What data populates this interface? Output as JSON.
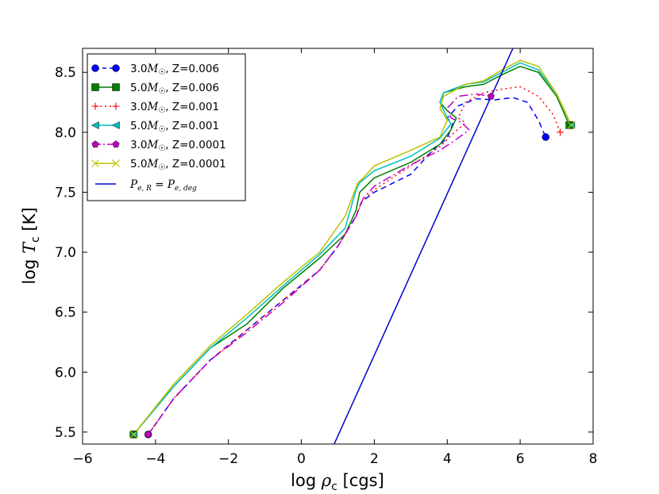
{
  "chart_data": {
    "type": "line",
    "title": "",
    "xlabel_prefix": "log ",
    "xlabel_symbol": "ρ",
    "xlabel_sub": "c",
    "xlabel_suffix": " [cgs]",
    "ylabel_prefix": "log ",
    "ylabel_symbol": "T",
    "ylabel_sub": "c",
    "ylabel_suffix": " [K]",
    "xlim": [
      -6,
      8
    ],
    "ylim": [
      5.4,
      8.7
    ],
    "xticks": [
      -6,
      -4,
      -2,
      0,
      2,
      4,
      6,
      8
    ],
    "xtick_labels": [
      "−6",
      "−4",
      "−2",
      "0",
      "2",
      "4",
      "6",
      "8"
    ],
    "yticks": [
      5.5,
      6.0,
      6.5,
      7.0,
      7.5,
      8.0,
      8.5
    ],
    "ytick_labels": [
      "5.5",
      "6.0",
      "6.5",
      "7.0",
      "7.5",
      "8.0",
      "8.5"
    ],
    "legend_position": "top-left",
    "series": [
      {
        "name": "3.0M☉, Z=0.006",
        "mass": "3.0",
        "z_text": ", Z=0.006",
        "color": "#0000ff",
        "dash": "7,5",
        "marker": "circle",
        "x": [
          -4.2,
          -3.5,
          -2.5,
          -1.5,
          -0.5,
          0.5,
          1.0,
          1.5,
          1.65,
          2.0,
          3.0,
          3.6,
          4.0,
          4.15,
          4.0,
          4.3,
          4.8,
          5.3,
          5.8,
          6.2,
          6.5,
          6.7
        ],
        "y": [
          5.48,
          5.78,
          6.1,
          6.35,
          6.6,
          6.85,
          7.05,
          7.3,
          7.42,
          7.5,
          7.65,
          7.85,
          7.95,
          8.07,
          8.12,
          8.22,
          8.28,
          8.27,
          8.29,
          8.25,
          8.1,
          7.96
        ]
      },
      {
        "name": "5.0M☉, Z=0.006",
        "mass": "5.0",
        "z_text": ", Z=0.006",
        "color": "#007f00",
        "dash": "",
        "marker": "square",
        "x": [
          -4.6,
          -3.5,
          -2.5,
          -1.5,
          -0.5,
          0.5,
          1.2,
          1.5,
          1.6,
          2.0,
          3.0,
          3.8,
          4.1,
          4.25,
          4.0,
          3.8,
          3.9,
          4.5,
          5.0,
          5.5,
          6.0,
          6.5,
          7.0,
          7.35
        ],
        "y": [
          5.48,
          5.88,
          6.2,
          6.4,
          6.7,
          6.95,
          7.15,
          7.35,
          7.5,
          7.62,
          7.75,
          7.9,
          8.02,
          8.12,
          8.18,
          8.25,
          8.33,
          8.38,
          8.4,
          8.48,
          8.55,
          8.5,
          8.3,
          8.06
        ]
      },
      {
        "name": "3.0M☉, Z=0.001",
        "mass": "3.0",
        "z_text": ", Z=0.001",
        "color": "#ff0000",
        "dash": "2,4",
        "marker": "plus",
        "x": [
          -4.2,
          -3.5,
          -2.5,
          -1.5,
          -0.5,
          0.5,
          1.0,
          1.5,
          1.65,
          2.0,
          3.0,
          3.8,
          4.2,
          4.5,
          4.3,
          4.5,
          5.0,
          5.5,
          6.0,
          6.5,
          6.9,
          7.1
        ],
        "y": [
          5.48,
          5.78,
          6.1,
          6.35,
          6.6,
          6.85,
          7.05,
          7.3,
          7.42,
          7.52,
          7.72,
          7.88,
          8.0,
          8.08,
          8.12,
          8.25,
          8.33,
          8.36,
          8.38,
          8.3,
          8.15,
          8.0
        ]
      },
      {
        "name": "5.0M☉, Z=0.001",
        "mass": "5.0",
        "z_text": ", Z=0.001",
        "color": "#00bfbf",
        "dash": "",
        "marker": "triangle-left",
        "x": [
          -4.6,
          -3.5,
          -2.5,
          -1.5,
          -0.5,
          0.5,
          1.2,
          1.5,
          1.6,
          2.0,
          3.0,
          3.8,
          4.1,
          4.0,
          3.8,
          3.9,
          4.5,
          5.0,
          5.5,
          6.0,
          6.5,
          7.0,
          7.4
        ],
        "y": [
          5.48,
          5.88,
          6.2,
          6.45,
          6.72,
          6.98,
          7.2,
          7.52,
          7.58,
          7.68,
          7.8,
          7.95,
          8.07,
          8.12,
          8.25,
          8.33,
          8.4,
          8.42,
          8.5,
          8.58,
          8.52,
          8.32,
          8.06
        ]
      },
      {
        "name": "3.0M☉, Z=0.0001",
        "mass": "3.0",
        "z_text": ", Z=0.0001",
        "color": "#bf00bf",
        "dash": "11,4,2,4",
        "marker": "pentagon",
        "x": [
          -4.2,
          -3.5,
          -2.5,
          -1.5,
          -0.5,
          0.5,
          1.0,
          1.5,
          1.7,
          2.0,
          3.0,
          3.8,
          4.2,
          4.6,
          4.4,
          4.1,
          4.0,
          4.3,
          4.8,
          5.2
        ],
        "y": [
          5.48,
          5.78,
          6.1,
          6.33,
          6.58,
          6.85,
          7.05,
          7.3,
          7.45,
          7.55,
          7.73,
          7.85,
          7.93,
          8.02,
          8.08,
          8.12,
          8.2,
          8.3,
          8.32,
          8.3
        ]
      },
      {
        "name": "5.0M☉, Z=0.0001",
        "mass": "5.0",
        "z_text": ", Z=0.0001",
        "color": "#bfbf00",
        "dash": "",
        "marker": "x",
        "x": [
          -4.6,
          -3.5,
          -2.5,
          -1.5,
          -0.5,
          0.5,
          1.2,
          1.55,
          1.7,
          2.0,
          3.0,
          3.8,
          4.0,
          3.8,
          3.9,
          4.5,
          5.0,
          5.5,
          6.0,
          6.5,
          7.0,
          7.4
        ],
        "y": [
          5.48,
          5.9,
          6.22,
          6.48,
          6.75,
          7.0,
          7.3,
          7.58,
          7.62,
          7.72,
          7.85,
          7.96,
          8.1,
          8.2,
          8.3,
          8.4,
          8.43,
          8.52,
          8.6,
          8.55,
          8.32,
          8.06
        ]
      },
      {
        "name": "Pe,R=Pe,deg",
        "label_l": "P",
        "label_l_sub": "e, R",
        "label_eq": " = ",
        "label_r": "P",
        "label_r_sub": "e, deg",
        "color": "#0000cc",
        "dash": "",
        "marker": "none",
        "x": [
          0.9,
          5.8
        ],
        "y": [
          5.4,
          8.7
        ]
      }
    ]
  }
}
